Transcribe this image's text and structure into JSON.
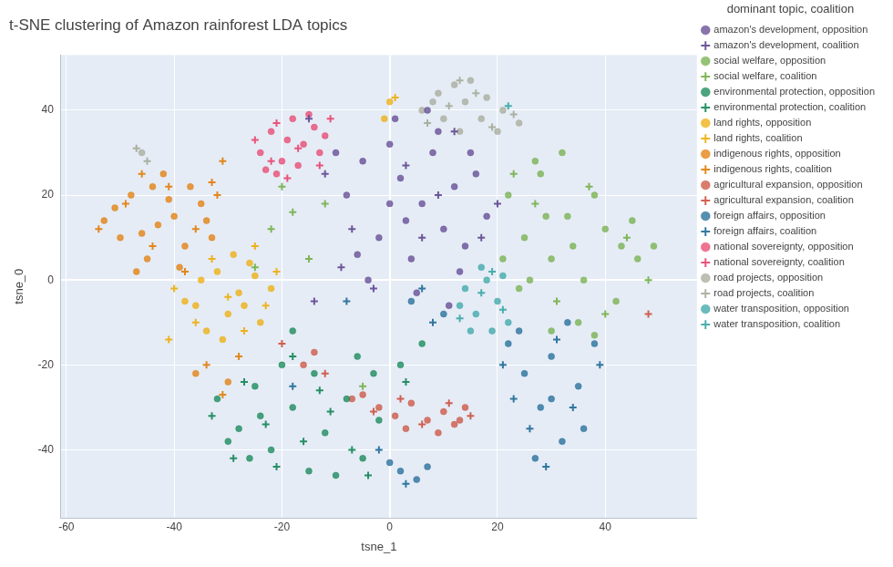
{
  "chart_data": {
    "type": "scatter",
    "title": "t-SNE clustering of Amazon rainforest LDA topics",
    "x_label": "tsne_1",
    "y_label": "tsne_0",
    "legend_title": "dominant topic, coalition",
    "legend": "right",
    "grid": true,
    "xlim": [
      -61,
      57
    ],
    "ylim": [
      -56,
      53
    ],
    "xticks": [
      -60,
      -40,
      -20,
      0,
      20,
      40
    ],
    "yticks": [
      -40,
      -20,
      0,
      20,
      40
    ],
    "series": [
      {
        "name": "amazon's development, opposition",
        "color": "#5F4690",
        "marker": "circle",
        "x": [
          -8,
          -5,
          -2,
          0,
          2,
          4,
          6,
          8,
          10,
          12,
          14,
          16,
          18,
          -4,
          1,
          5,
          9,
          13,
          3,
          7,
          -10,
          11,
          0,
          -6,
          15
        ],
        "values": [
          20,
          28,
          10,
          32,
          24,
          5,
          18,
          30,
          12,
          22,
          8,
          25,
          15,
          0,
          38,
          -3,
          35,
          2,
          14,
          40,
          30,
          -6,
          18,
          6,
          30
        ]
      },
      {
        "name": "amazon's development, coalition",
        "color": "#5F4690",
        "marker": "cross",
        "x": [
          -12,
          -15,
          -7,
          3,
          9,
          17,
          -3,
          6,
          12,
          -9,
          20,
          -14
        ],
        "values": [
          25,
          38,
          12,
          27,
          20,
          10,
          -2,
          10,
          35,
          3,
          18,
          -5
        ]
      },
      {
        "name": "social welfare, opposition",
        "color": "#73AF48",
        "marker": "circle",
        "x": [
          22,
          25,
          28,
          30,
          33,
          36,
          40,
          43,
          46,
          49,
          24,
          27,
          32,
          38,
          42,
          35,
          30,
          26,
          45,
          38,
          21,
          29,
          34
        ],
        "values": [
          20,
          10,
          25,
          5,
          15,
          0,
          12,
          8,
          5,
          8,
          -2,
          28,
          30,
          20,
          -5,
          -10,
          -12,
          0,
          14,
          -13,
          5,
          15,
          8
        ]
      },
      {
        "name": "social welfare, coalition",
        "color": "#73AF48",
        "marker": "cross",
        "x": [
          -22,
          -18,
          -15,
          -25,
          -12,
          23,
          31,
          37,
          44,
          48,
          27,
          40,
          -5,
          -20
        ],
        "values": [
          12,
          16,
          5,
          3,
          18,
          25,
          -5,
          22,
          10,
          0,
          18,
          -8,
          -25,
          22
        ]
      },
      {
        "name": "environmental protection, opposition",
        "color": "#0F8554",
        "marker": "circle",
        "x": [
          -32,
          -28,
          -25,
          -22,
          -18,
          -15,
          -12,
          -8,
          -5,
          -2,
          -30,
          -20,
          -14,
          -10,
          -24,
          -6,
          -18,
          -26,
          -3,
          2,
          6
        ],
        "values": [
          -28,
          -35,
          -25,
          -40,
          -30,
          -45,
          -36,
          -28,
          -42,
          -33,
          -38,
          -20,
          -22,
          -46,
          -32,
          -18,
          -12,
          -42,
          -22,
          -20,
          -15
        ]
      },
      {
        "name": "environmental protection, coalition",
        "color": "#0F8554",
        "marker": "cross",
        "x": [
          -33,
          -27,
          -21,
          -16,
          -11,
          -7,
          -23,
          -13,
          -4,
          -29,
          3,
          -18
        ],
        "values": [
          -32,
          -24,
          -44,
          -38,
          -31,
          -40,
          -34,
          -26,
          -46,
          -42,
          -24,
          -18
        ]
      },
      {
        "name": "land rights, opposition",
        "color": "#EDAD08",
        "marker": "circle",
        "x": [
          -38,
          -35,
          -32,
          -30,
          -28,
          -26,
          -24,
          -22,
          -34,
          -29,
          -25,
          -31,
          -36,
          -27,
          0,
          -1
        ],
        "values": [
          -5,
          0,
          2,
          -8,
          -3,
          4,
          -10,
          -2,
          -12,
          6,
          1,
          -14,
          -6,
          -6,
          42,
          38
        ]
      },
      {
        "name": "land rights, coalition",
        "color": "#EDAD08",
        "marker": "cross",
        "x": [
          -40,
          -33,
          -27,
          -23,
          -21,
          -30,
          -36,
          -25,
          1,
          -41
        ],
        "values": [
          -2,
          5,
          -12,
          -6,
          2,
          -4,
          -10,
          8,
          43,
          -14
        ]
      },
      {
        "name": "indigenous rights, opposition",
        "color": "#E17C05",
        "marker": "circle",
        "x": [
          -53,
          -50,
          -48,
          -45,
          -42,
          -40,
          -38,
          -35,
          -33,
          -47,
          -43,
          -37,
          -51,
          -44,
          -39,
          -46,
          -41,
          -34,
          -36,
          -30
        ],
        "values": [
          14,
          10,
          20,
          5,
          25,
          15,
          8,
          18,
          10,
          2,
          13,
          22,
          17,
          22,
          3,
          11,
          19,
          14,
          -22,
          -24
        ]
      },
      {
        "name": "indigenous rights, coalition",
        "color": "#E17C05",
        "marker": "cross",
        "x": [
          -54,
          -49,
          -44,
          -41,
          -36,
          -32,
          -46,
          -38,
          -34,
          -31,
          -28,
          -31,
          -33
        ],
        "values": [
          12,
          18,
          8,
          22,
          12,
          20,
          25,
          2,
          -20,
          -27,
          -18,
          28,
          23
        ]
      },
      {
        "name": "agricultural expansion, opposition",
        "color": "#CC503E",
        "marker": "circle",
        "x": [
          -5,
          -2,
          1,
          4,
          7,
          10,
          12,
          14,
          -7,
          3,
          9,
          13,
          -14,
          -16
        ],
        "values": [
          -27,
          -30,
          -32,
          -29,
          -33,
          -31,
          -34,
          -30,
          -28,
          -35,
          -36,
          -33,
          -17,
          -20
        ]
      },
      {
        "name": "agricultural expansion, coalition",
        "color": "#CC503E",
        "marker": "cross",
        "x": [
          -3,
          2,
          6,
          11,
          15,
          -12,
          48,
          -20
        ],
        "values": [
          -31,
          -28,
          -34,
          -29,
          -32,
          -22,
          -8,
          -15
        ]
      },
      {
        "name": "foreign affairs, opposition",
        "color": "#1D6996",
        "marker": "circle",
        "x": [
          22,
          25,
          28,
          30,
          32,
          35,
          38,
          27,
          33,
          30,
          36,
          24,
          2,
          5,
          0,
          7,
          4,
          10
        ],
        "values": [
          -15,
          -22,
          -30,
          -18,
          -38,
          -25,
          -15,
          -42,
          -10,
          -28,
          -35,
          -12,
          -45,
          -47,
          -43,
          -44,
          -5,
          -8
        ]
      },
      {
        "name": "foreign affairs, coalition",
        "color": "#1D6996",
        "marker": "cross",
        "x": [
          21,
          26,
          31,
          34,
          39,
          29,
          23,
          3,
          -2,
          -8,
          6,
          -18,
          8
        ],
        "values": [
          -20,
          -35,
          -14,
          -30,
          -20,
          -44,
          -28,
          -48,
          -40,
          -5,
          -2,
          -25,
          -10
        ]
      },
      {
        "name": "national sovereignty, opposition",
        "color": "#E8436E",
        "marker": "circle",
        "x": [
          -24,
          -22,
          -20,
          -18,
          -16,
          -14,
          -12,
          -21,
          -17,
          -13,
          -23,
          -19,
          -15
        ],
        "values": [
          30,
          35,
          28,
          38,
          32,
          36,
          34,
          25,
          27,
          30,
          26,
          33,
          39
        ]
      },
      {
        "name": "national sovereignty, coalition",
        "color": "#E8436E",
        "marker": "cross",
        "x": [
          -25,
          -21,
          -17,
          -13,
          -11,
          -19,
          -22
        ],
        "values": [
          33,
          37,
          31,
          27,
          38,
          24,
          28
        ]
      },
      {
        "name": "road projects, opposition",
        "color": "#A5AA99",
        "marker": "circle",
        "x": [
          6,
          9,
          12,
          15,
          18,
          21,
          24,
          10,
          14,
          17,
          20,
          8,
          13,
          -46
        ],
        "values": [
          40,
          44,
          46,
          47,
          43,
          40,
          37,
          38,
          42,
          38,
          35,
          42,
          35,
          30
        ]
      },
      {
        "name": "road projects, coalition",
        "color": "#A5AA99",
        "marker": "cross",
        "x": [
          7,
          11,
          16,
          19,
          23,
          13,
          -45,
          -47
        ],
        "values": [
          37,
          41,
          44,
          36,
          39,
          47,
          28,
          31
        ]
      },
      {
        "name": "water transposition, opposition",
        "color": "#38A6A5",
        "marker": "circle",
        "x": [
          14,
          16,
          18,
          20,
          22,
          15,
          19,
          17,
          21,
          13
        ],
        "values": [
          -2,
          -8,
          0,
          -5,
          -10,
          -12,
          -12,
          3,
          1,
          -6
        ]
      },
      {
        "name": "water transposition, coalition",
        "color": "#38A6A5",
        "marker": "cross",
        "x": [
          13,
          17,
          21,
          19,
          22
        ],
        "values": [
          -9,
          -3,
          -7,
          2,
          41
        ]
      }
    ]
  }
}
